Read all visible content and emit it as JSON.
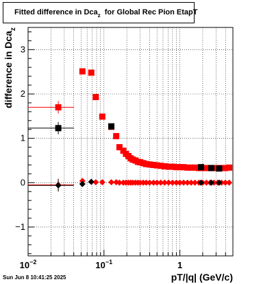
{
  "title": {
    "main": "Fitted difference in Dca",
    "sub": "z",
    "rest": "for Global Rec Pion EtapT"
  },
  "footer": "Sun Jun  8 10:41:25 2025",
  "chart_data": {
    "type": "scatter",
    "xlabel": "pT/|q| (GeV/c)",
    "ylabel_main": "difference in Dca",
    "ylabel_sub": "z",
    "xscale": "log",
    "xlim": [
      0.01,
      5
    ],
    "ylim": [
      -1.65,
      3.5
    ],
    "grid": true,
    "x_ticks": [
      {
        "v": 0.01,
        "base": "10",
        "exp": "−2"
      },
      {
        "v": 0.1,
        "base": "10",
        "exp": "−1"
      },
      {
        "v": 1,
        "base": "1",
        "exp": ""
      }
    ],
    "y_ticks": [
      -1,
      0,
      1,
      2,
      3
    ],
    "colors": {
      "red": "#ff0000",
      "black": "#000000"
    },
    "series": [
      {
        "color": "#ff0000",
        "points": [
          {
            "x": 0.025,
            "y": 1.7,
            "xerr": [
              0.01,
              0.04
            ]
          },
          {
            "x": 0.052,
            "y": 2.51
          },
          {
            "x": 0.068,
            "y": 2.48
          },
          {
            "x": 0.078,
            "y": 1.93
          },
          {
            "x": 0.095,
            "y": 1.49
          },
          {
            "x": 0.125,
            "y": 1.26
          },
          {
            "x": 0.145,
            "y": 1.05
          },
          {
            "x": 0.16,
            "y": 0.8
          },
          {
            "x": 0.18,
            "y": 0.72
          },
          {
            "x": 0.195,
            "y": 0.65
          },
          {
            "x": 0.21,
            "y": 0.6
          },
          {
            "x": 0.225,
            "y": 0.55
          },
          {
            "x": 0.24,
            "y": 0.52
          },
          {
            "x": 0.26,
            "y": 0.5
          },
          {
            "x": 0.28,
            "y": 0.47
          },
          {
            "x": 0.3,
            "y": 0.46
          },
          {
            "x": 0.33,
            "y": 0.44
          },
          {
            "x": 0.36,
            "y": 0.42
          },
          {
            "x": 0.4,
            "y": 0.41
          },
          {
            "x": 0.45,
            "y": 0.4
          },
          {
            "x": 0.5,
            "y": 0.39
          },
          {
            "x": 0.56,
            "y": 0.38
          },
          {
            "x": 0.63,
            "y": 0.37
          },
          {
            "x": 0.71,
            "y": 0.36
          },
          {
            "x": 0.8,
            "y": 0.36
          },
          {
            "x": 0.9,
            "y": 0.35
          },
          {
            "x": 1.0,
            "y": 0.35
          },
          {
            "x": 1.12,
            "y": 0.35
          },
          {
            "x": 1.26,
            "y": 0.34
          },
          {
            "x": 1.41,
            "y": 0.34
          },
          {
            "x": 1.58,
            "y": 0.34
          },
          {
            "x": 1.78,
            "y": 0.33
          },
          {
            "x": 2.0,
            "y": 0.33
          },
          {
            "x": 2.24,
            "y": 0.33
          },
          {
            "x": 2.51,
            "y": 0.33
          },
          {
            "x": 2.82,
            "y": 0.33
          },
          {
            "x": 3.16,
            "y": 0.33
          },
          {
            "x": 3.55,
            "y": 0.33
          },
          {
            "x": 3.98,
            "y": 0.33
          },
          {
            "x": 4.47,
            "y": 0.34
          }
        ]
      },
      {
        "color": "#000000",
        "points": [
          {
            "x": 0.025,
            "y": 1.23,
            "xerr": [
              0.01,
              0.04
            ]
          },
          {
            "x": 0.125,
            "y": 1.27
          },
          {
            "x": 1.9,
            "y": 0.35
          },
          {
            "x": 2.6,
            "y": 0.33
          },
          {
            "x": 3.3,
            "y": 0.32
          }
        ]
      },
      {
        "color": "#ff0000",
        "marker": "diamond",
        "points": [
          {
            "x": 0.025,
            "y": -0.05,
            "xerr": [
              0.01,
              0.04
            ]
          },
          {
            "x": 0.052,
            "y": 0.04
          },
          {
            "x": 0.068,
            "y": 0.02
          },
          {
            "x": 0.078,
            "y": 0.01
          },
          {
            "x": 0.095,
            "y": 0.01
          },
          {
            "x": 0.125,
            "y": 0.01
          },
          {
            "x": 0.145,
            "y": 0.01
          },
          {
            "x": 0.16,
            "y": 0.0
          },
          {
            "x": 0.18,
            "y": 0.0
          },
          {
            "x": 0.195,
            "y": 0.0
          },
          {
            "x": 0.21,
            "y": 0.0
          },
          {
            "x": 0.225,
            "y": 0.0
          },
          {
            "x": 0.24,
            "y": 0.0
          },
          {
            "x": 0.26,
            "y": 0.0
          },
          {
            "x": 0.28,
            "y": 0.0
          },
          {
            "x": 0.3,
            "y": 0.0
          },
          {
            "x": 0.33,
            "y": 0.0
          },
          {
            "x": 0.36,
            "y": 0.0
          },
          {
            "x": 0.4,
            "y": 0.0
          },
          {
            "x": 0.45,
            "y": 0.0
          },
          {
            "x": 0.5,
            "y": 0.0
          },
          {
            "x": 0.56,
            "y": 0.0
          },
          {
            "x": 0.63,
            "y": 0.0
          },
          {
            "x": 0.71,
            "y": 0.0
          },
          {
            "x": 0.8,
            "y": 0.0
          },
          {
            "x": 0.9,
            "y": 0.0
          },
          {
            "x": 1.0,
            "y": 0.0
          },
          {
            "x": 1.12,
            "y": 0.0
          },
          {
            "x": 1.26,
            "y": 0.0
          },
          {
            "x": 1.41,
            "y": 0.0
          },
          {
            "x": 1.58,
            "y": 0.0
          },
          {
            "x": 1.78,
            "y": 0.0
          },
          {
            "x": 2.0,
            "y": 0.0
          },
          {
            "x": 2.24,
            "y": 0.0
          },
          {
            "x": 2.51,
            "y": 0.0
          },
          {
            "x": 2.82,
            "y": 0.0
          },
          {
            "x": 3.16,
            "y": 0.0
          },
          {
            "x": 3.55,
            "y": 0.0
          },
          {
            "x": 3.98,
            "y": 0.0
          },
          {
            "x": 4.47,
            "y": 0.0
          }
        ]
      },
      {
        "color": "#000000",
        "marker": "diamond",
        "points": [
          {
            "x": 0.025,
            "y": -0.06,
            "xerr": [
              0.01,
              0.04
            ]
          },
          {
            "x": 0.052,
            "y": -0.03
          },
          {
            "x": 0.068,
            "y": 0.02
          },
          {
            "x": 1.9,
            "y": 0.0
          },
          {
            "x": 2.6,
            "y": 0.0
          },
          {
            "x": 3.3,
            "y": 0.0
          }
        ]
      }
    ]
  }
}
